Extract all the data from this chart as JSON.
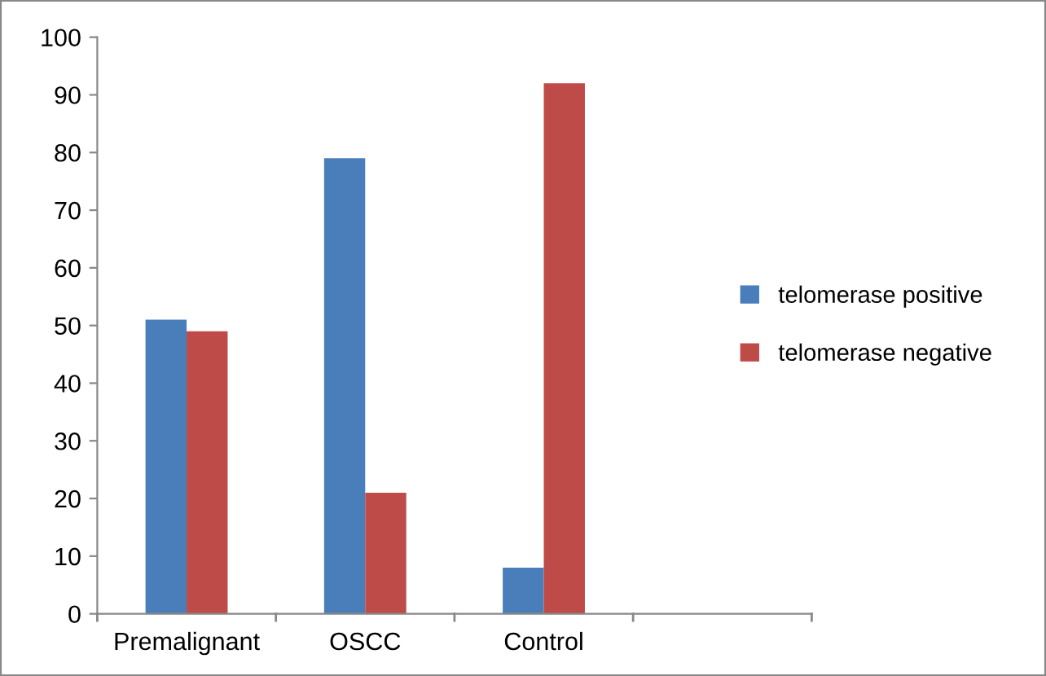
{
  "chart_data": {
    "type": "bar",
    "categories": [
      "Premalignant",
      "OSCC",
      "Control"
    ],
    "series": [
      {
        "name": "telomerase positive",
        "color": "#4a7ebb",
        "values": [
          51,
          79,
          8
        ]
      },
      {
        "name": "telomerase negative",
        "color": "#be4b48",
        "values": [
          49,
          21,
          92
        ]
      }
    ],
    "ylim": [
      0,
      100
    ],
    "yticks": [
      0,
      10,
      20,
      30,
      40,
      50,
      60,
      70,
      80,
      90,
      100
    ],
    "grid": false,
    "legend": "right"
  }
}
